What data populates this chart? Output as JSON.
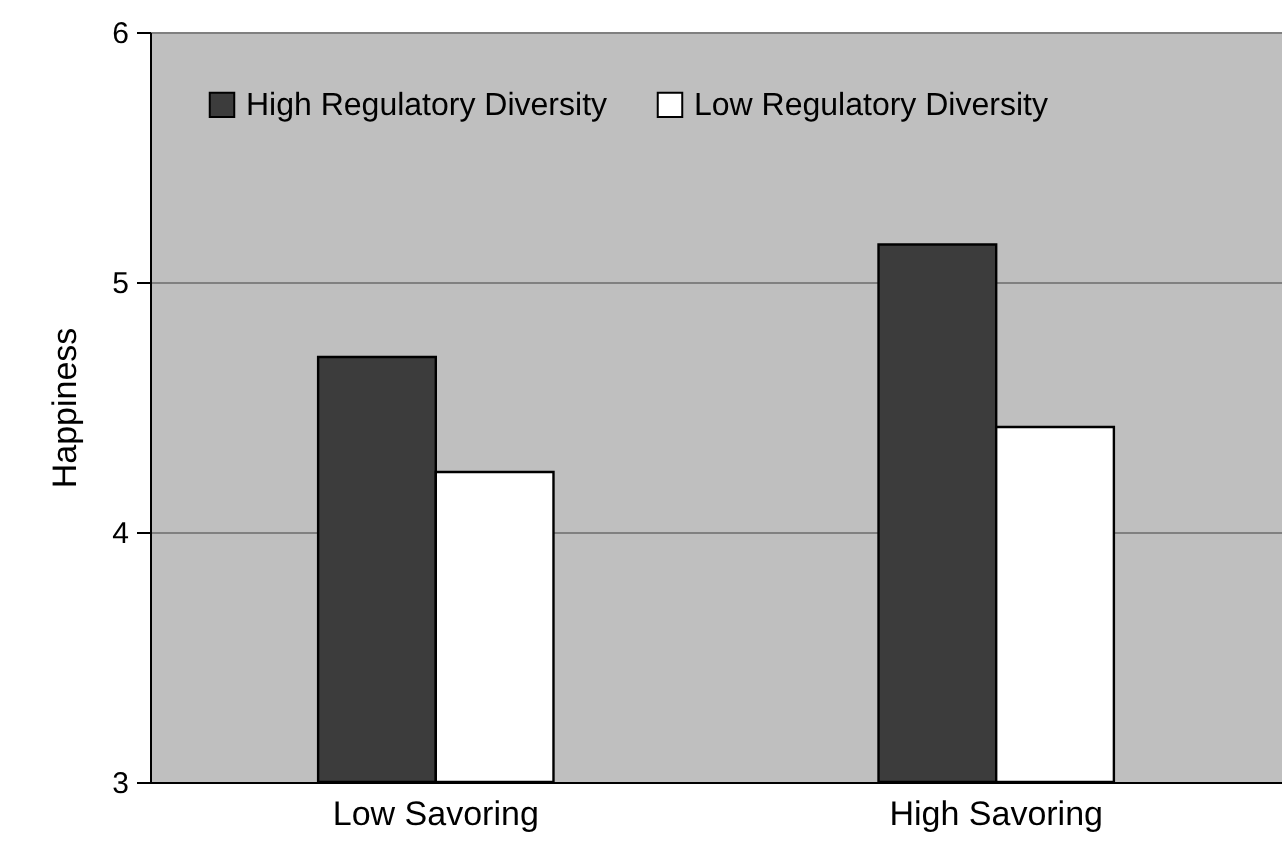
{
  "chart_data": {
    "type": "bar",
    "ylabel": "Happiness",
    "categories": [
      "Low Savoring",
      "High Savoring"
    ],
    "series": [
      {
        "name": "High Regulatory Diversity",
        "color": "#3c3c3c",
        "values": [
          4.7,
          5.15
        ]
      },
      {
        "name": "Low Regulatory Diversity",
        "color": "#ffffff",
        "values": [
          4.24,
          4.42
        ]
      }
    ],
    "ylim": [
      3,
      6
    ],
    "yticks": [
      3,
      4,
      5,
      6
    ],
    "grid": "y",
    "legend": "top left"
  }
}
